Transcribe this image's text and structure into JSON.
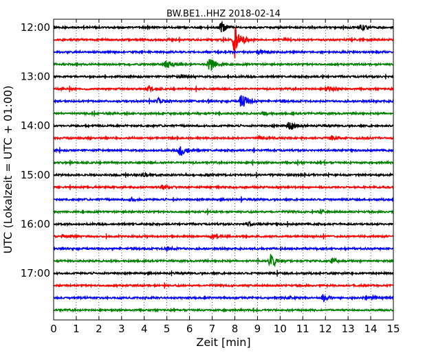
{
  "chart_data": {
    "type": "line",
    "title": "BW.BE1..HHZ 2018-02-14",
    "xlabel": "Zeit  [min]",
    "ylabel": "UTC (Lokalzeit = UTC + 01:00)",
    "xlim": [
      0,
      15
    ],
    "x_ticks": [
      "0",
      "1",
      "2",
      "3",
      "4",
      "5",
      "6",
      "7",
      "8",
      "9",
      "10",
      "11",
      "12",
      "13",
      "14",
      "15"
    ],
    "y_ticks": [
      "12:00",
      "13:00",
      "14:00",
      "15:00",
      "16:00",
      "17:00"
    ],
    "trace_interval_minutes": 15,
    "grid": "vertical dotted",
    "trace_colors": [
      "#000000",
      "#ff0000",
      "#0000ff",
      "#008000"
    ],
    "traces": [
      {
        "start": "12:00",
        "events": [
          {
            "t": 7.4,
            "amp": 1.1
          },
          {
            "t": 13.6,
            "amp": 0.5
          }
        ]
      },
      {
        "start": "12:15",
        "events": [
          {
            "t": 8.0,
            "amp": 3.4
          }
        ]
      },
      {
        "start": "12:30",
        "events": [
          {
            "t": 9.1,
            "amp": 0.4
          }
        ]
      },
      {
        "start": "12:45",
        "events": [
          {
            "t": 5.0,
            "amp": 0.9
          },
          {
            "t": 6.9,
            "amp": 1.6
          }
        ]
      },
      {
        "start": "13:00",
        "events": [
          {
            "t": 5.6,
            "amp": 0.4
          }
        ]
      },
      {
        "start": "13:15",
        "events": [
          {
            "t": 4.2,
            "amp": 0.4
          },
          {
            "t": 12.1,
            "amp": 0.6
          }
        ]
      },
      {
        "start": "13:30",
        "events": [
          {
            "t": 4.6,
            "amp": 0.6
          },
          {
            "t": 8.3,
            "amp": 1.5
          }
        ]
      },
      {
        "start": "13:45",
        "events": [
          {
            "t": 9.3,
            "amp": 0.3
          }
        ]
      },
      {
        "start": "14:00",
        "events": [
          {
            "t": 10.4,
            "amp": 1.1
          }
        ]
      },
      {
        "start": "14:15",
        "events": [
          {
            "t": 9.1,
            "amp": 0.4
          },
          {
            "t": 12.3,
            "amp": 0.5
          }
        ]
      },
      {
        "start": "14:30",
        "events": [
          {
            "t": 5.6,
            "amp": 1.2
          }
        ]
      },
      {
        "start": "14:45",
        "events": []
      },
      {
        "start": "15:00",
        "events": [
          {
            "t": 4.0,
            "amp": 0.3
          }
        ]
      },
      {
        "start": "15:15",
        "events": [
          {
            "t": 4.8,
            "amp": 0.3
          }
        ]
      },
      {
        "start": "15:30",
        "events": [
          {
            "t": 3.4,
            "amp": 0.3
          }
        ]
      },
      {
        "start": "15:45",
        "events": [
          {
            "t": 11.8,
            "amp": 0.3
          }
        ]
      },
      {
        "start": "16:00",
        "events": [
          {
            "t": 8.6,
            "amp": 0.3
          }
        ]
      },
      {
        "start": "16:15",
        "events": [
          {
            "t": 0.4,
            "amp": 0.3
          },
          {
            "t": 7.0,
            "amp": 0.3
          }
        ]
      },
      {
        "start": "16:30",
        "events": [
          {
            "t": 5.0,
            "amp": 0.3
          }
        ]
      },
      {
        "start": "16:45",
        "events": [
          {
            "t": 9.6,
            "amp": 1.6
          },
          {
            "t": 12.3,
            "amp": 0.5
          }
        ]
      },
      {
        "start": "17:00",
        "events": []
      },
      {
        "start": "17:15",
        "events": []
      },
      {
        "start": "17:30",
        "events": [
          {
            "t": 10.3,
            "amp": 0.3
          },
          {
            "t": 11.9,
            "amp": 0.7
          },
          {
            "t": 14.1,
            "amp": 0.3
          }
        ]
      },
      {
        "start": "17:45",
        "events": []
      }
    ]
  }
}
